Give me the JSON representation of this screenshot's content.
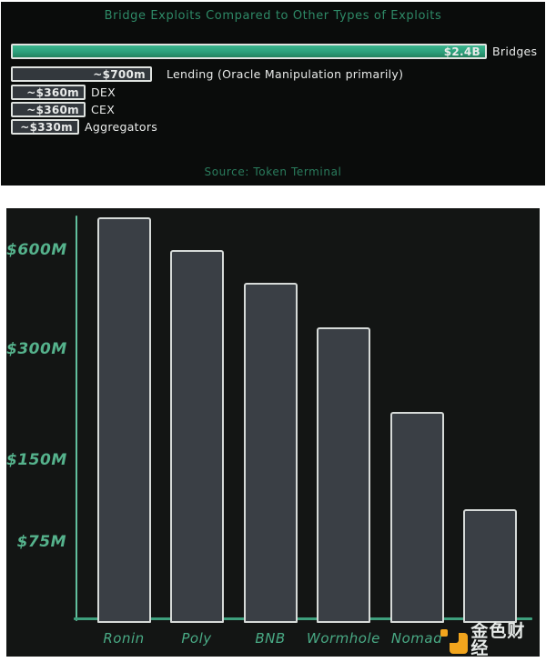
{
  "chart_data": [
    {
      "type": "bar",
      "orientation": "horizontal",
      "title": "Bridge Exploits Compared to Other Types of Exploits",
      "source": "Source: Token Terminal",
      "categories": [
        "Bridges",
        "Lending (Oracle Manipulation primarily)",
        "DEX",
        "CEX",
        "Aggregators"
      ],
      "values_usd_millions": [
        2400,
        700,
        360,
        360,
        330
      ],
      "value_labels": [
        "$2.4B",
        "~$700m",
        "~$360m",
        "~$360m",
        "~$330m"
      ],
      "xlim": [
        0,
        2400
      ],
      "grid": false,
      "legend": "none",
      "highlight_series_color": "#2da07c",
      "bar_color": "#33383d"
    },
    {
      "type": "bar",
      "orientation": "vertical",
      "title": "",
      "categories": [
        "Ronin",
        "Poly",
        "BNB",
        "Wormhole",
        "Nomad",
        ""
      ],
      "values_usd_millions_est": [
        760,
        600,
        475,
        345,
        190,
        95
      ],
      "y_axis": {
        "scale": "log2",
        "tick_labels": [
          "$600M",
          "$300M",
          "$150M",
          "$75M"
        ],
        "tick_values": [
          600,
          300,
          150,
          75
        ]
      },
      "grid": false,
      "legend": "none",
      "bar_color": "#3a3f45"
    }
  ],
  "watermark": {
    "text": "金色财经"
  },
  "colors": {
    "panel_background_top": "#0a0c0b",
    "panel_background_bottom": "#131514",
    "highlight_green": "#2da07c",
    "title_green": "#2e8a67",
    "axis_green": "#62c09e",
    "tick_label_green": "#55b28c",
    "bar_outline_white": "#dfe3e0",
    "watermark_orange": "#f2a51d"
  }
}
